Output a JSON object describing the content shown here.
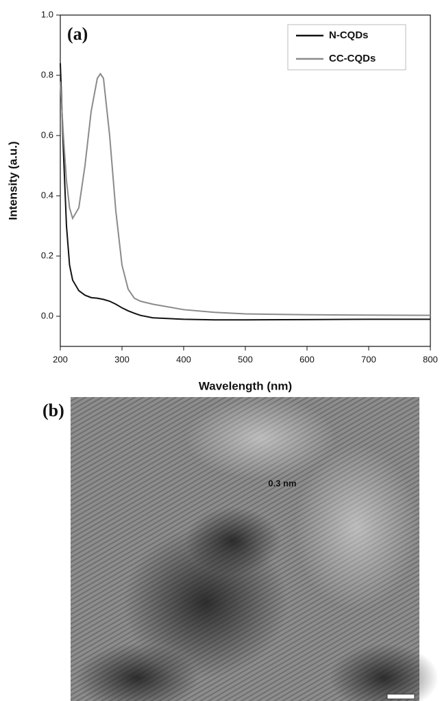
{
  "chart_data": {
    "type": "line",
    "panel_label": "(a)",
    "xlabel": "Wavelength (nm)",
    "ylabel": "Intensity (a.u.)",
    "x": [
      200,
      205,
      210,
      215,
      220,
      230,
      240,
      250,
      260,
      265,
      270,
      280,
      290,
      300,
      310,
      320,
      330,
      350,
      400,
      450,
      500,
      600,
      700,
      800
    ],
    "series": [
      {
        "name": "N-CQDs",
        "color": "#111111",
        "values": [
          0.84,
          0.55,
          0.3,
          0.17,
          0.12,
          0.085,
          0.07,
          0.062,
          0.06,
          0.058,
          0.056,
          0.05,
          0.04,
          0.028,
          0.018,
          0.01,
          0.003,
          -0.005,
          -0.01,
          -0.012,
          -0.012,
          -0.011,
          -0.01,
          -0.01
        ]
      },
      {
        "name": "CC-CQDs",
        "color": "#8a8a8a",
        "values": [
          0.78,
          0.6,
          0.45,
          0.36,
          0.325,
          0.36,
          0.5,
          0.68,
          0.79,
          0.805,
          0.79,
          0.6,
          0.35,
          0.17,
          0.09,
          0.06,
          0.05,
          0.04,
          0.022,
          0.013,
          0.008,
          0.005,
          0.004,
          0.003
        ]
      }
    ],
    "xlim": [
      200,
      800
    ],
    "ylim": [
      -0.1,
      1.0
    ],
    "xticks": [
      200,
      300,
      400,
      500,
      600,
      700,
      800
    ],
    "yticks": [
      {
        "value": 0,
        "label": "0.0"
      },
      0.2,
      0.4,
      0.6,
      0.8,
      {
        "value": 1,
        "label": "1.0"
      }
    ],
    "grid": false,
    "legend": "upper right"
  },
  "panel_b": {
    "label": "(b)",
    "annotation": "0.3 nm"
  }
}
